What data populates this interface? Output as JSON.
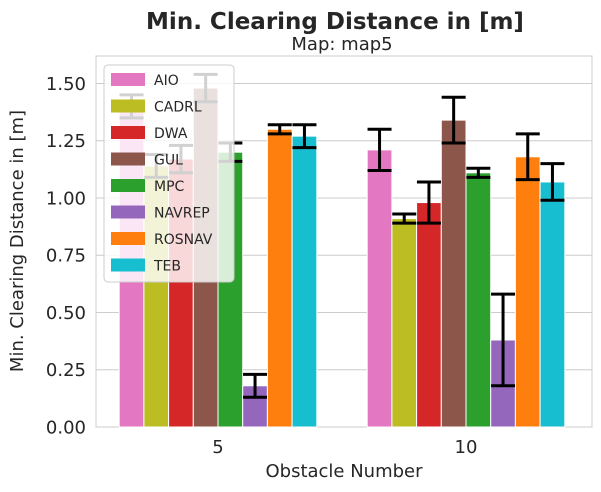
{
  "chart_data": {
    "type": "bar",
    "title": "Min. Clearing Distance in [m]",
    "subtitle": "Map: map5",
    "xlabel": "Obstacle Number",
    "ylabel": "Min. Clearing Distance in [m]",
    "categories": [
      "5",
      "10"
    ],
    "ylim": [
      0,
      1.62
    ],
    "yticks": [
      "0.00",
      "0.25",
      "0.50",
      "0.75",
      "1.00",
      "1.25",
      "1.50"
    ],
    "grid": true,
    "legend_position": "top-left",
    "series": [
      {
        "name": "AIO",
        "color": "#e377c2",
        "values": [
          1.4,
          1.21
        ],
        "errors": [
          0.05,
          0.09
        ]
      },
      {
        "name": "CADRL",
        "color": "#bcbd22",
        "values": [
          1.14,
          0.91
        ],
        "errors": [
          0.05,
          0.02
        ]
      },
      {
        "name": "DWA",
        "color": "#d62728",
        "values": [
          1.17,
          0.98
        ],
        "errors": [
          0.06,
          0.09
        ]
      },
      {
        "name": "GUL",
        "color": "#8c564b",
        "values": [
          1.48,
          1.34
        ],
        "errors": [
          0.06,
          0.1
        ]
      },
      {
        "name": "MPC",
        "color": "#2ca02c",
        "values": [
          1.2,
          1.11
        ],
        "errors": [
          0.04,
          0.02
        ]
      },
      {
        "name": "NAVREP",
        "color": "#9467bd",
        "values": [
          0.18,
          0.38
        ],
        "errors": [
          0.05,
          0.2
        ]
      },
      {
        "name": "ROSNAV",
        "color": "#ff7f0e",
        "values": [
          1.3,
          1.18
        ],
        "errors": [
          0.02,
          0.1
        ]
      },
      {
        "name": "TEB",
        "color": "#17becf",
        "values": [
          1.27,
          1.07
        ],
        "errors": [
          0.05,
          0.08
        ]
      }
    ]
  }
}
